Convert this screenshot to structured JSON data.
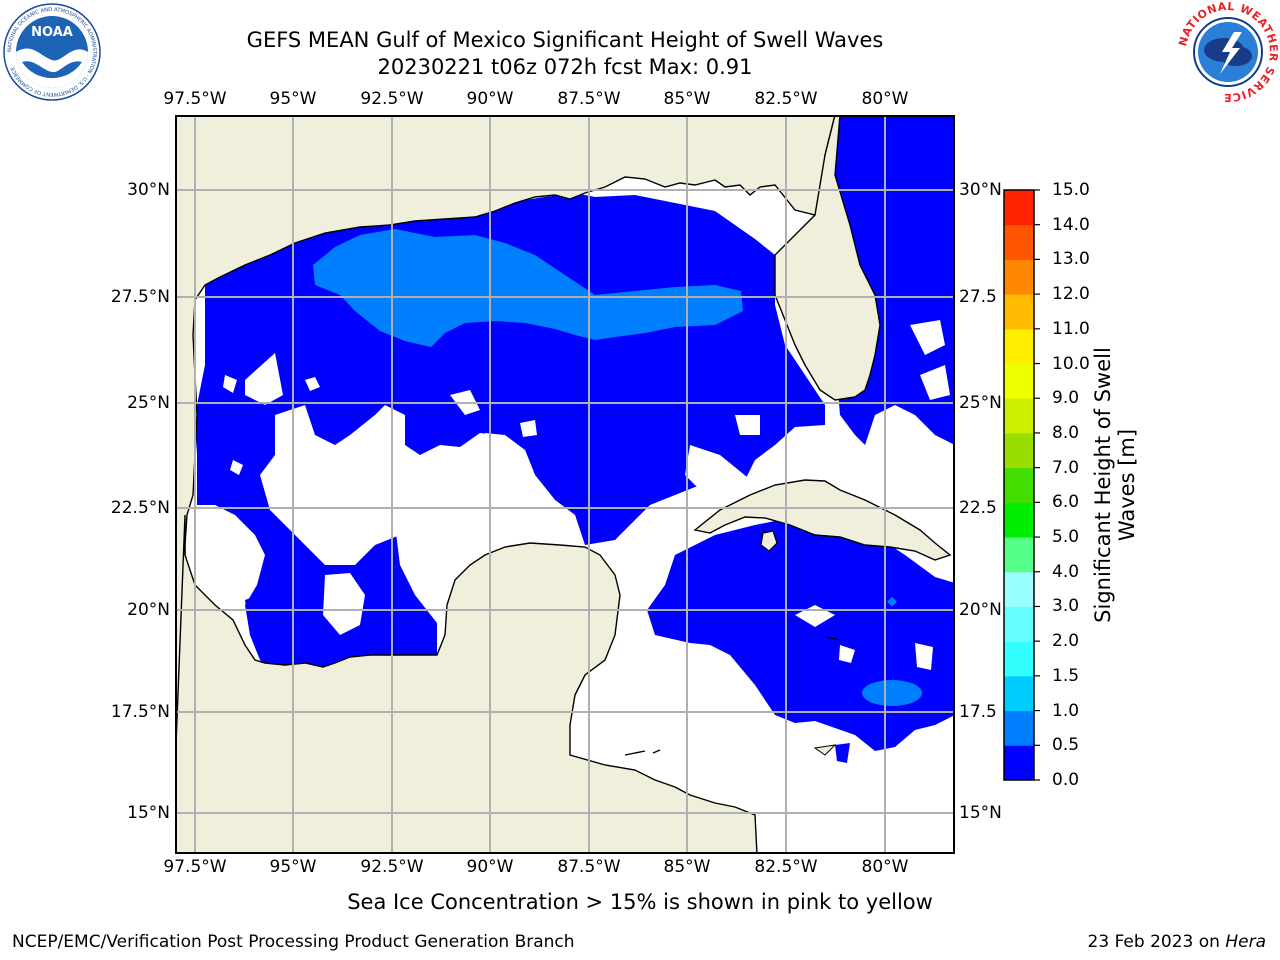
{
  "title_line1": "GEFS MEAN Gulf of Mexico Significant Height of Swell Waves",
  "title_line2": "20230221 t06z 072h fcst   Max: 0.91",
  "x_ticks": [
    "97.5°W",
    "95°W",
    "92.5°W",
    "90°W",
    "87.5°W",
    "85°W",
    "82.5°W",
    "80°W"
  ],
  "y_ticks_left": [
    "30°N",
    "27.5°N",
    "25°N",
    "22.5°N",
    "20°N",
    "17.5°N",
    "15°N"
  ],
  "y_ticks_right": [
    "30°N",
    "27.5",
    "25°N",
    "22.5",
    "20°N",
    "17.5",
    "15°N"
  ],
  "colorbar": {
    "title": "Significant Height of Swell Waves [m]",
    "title_line1": "Significant Height of Swell",
    "title_line2": "Waves [m]",
    "ticks": [
      "0.0",
      "0.5",
      "1.0",
      "1.5",
      "2.0",
      "3.0",
      "4.0",
      "5.0",
      "6.0",
      "7.0",
      "8.0",
      "9.0",
      "10.0",
      "11.0",
      "12.0",
      "13.0",
      "14.0",
      "15.0"
    ],
    "colors": [
      "#0000ff",
      "#0080ff",
      "#00ccff",
      "#33ffff",
      "#66ffff",
      "#99ffff",
      "#55ff88",
      "#00ee00",
      "#44dd00",
      "#99dd00",
      "#ccee00",
      "#eeff00",
      "#ffee00",
      "#ffbb00",
      "#ff8800",
      "#ff5500",
      "#ff2200"
    ]
  },
  "map_colors": {
    "land": "#efefdc",
    "swell_0_0_5": "#0000ff",
    "swell_0_5_1_0": "#0080ff",
    "ocean_no_data": "#ffffff",
    "grid": "#b0b0b0"
  },
  "bottom_note": "Sea Ice Concentration > 15% is shown in pink to yellow",
  "footer_left": "NCEP/EMC/Verification Post Processing Product Generation Branch",
  "footer_date": "23 Feb 2023 on ",
  "footer_host": "Hera",
  "logo_left": {
    "text": "NOAA",
    "ring_text": "NATIONAL OCEANIC AND ATMOSPHERIC ADMINISTRATION · U.S. DEPARTMENT OF COMMERCE"
  },
  "logo_right": {
    "ring_text": "NATIONAL WEATHER SERVICE"
  }
}
